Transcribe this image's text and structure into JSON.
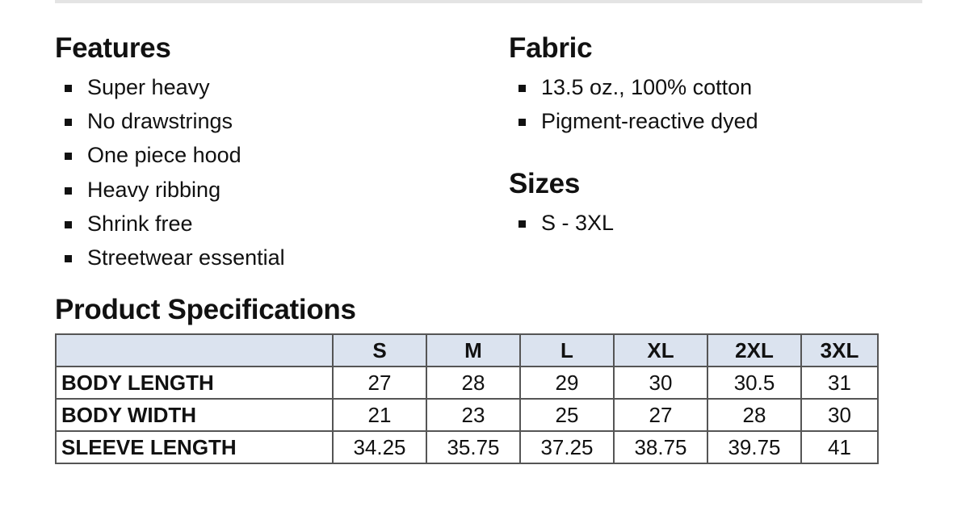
{
  "features": {
    "title": "Features",
    "items": [
      "Super heavy",
      "No drawstrings",
      "One piece hood",
      "Heavy ribbing",
      "Shrink free",
      "Streetwear essential"
    ]
  },
  "fabric": {
    "title": "Fabric",
    "items": [
      "13.5 oz., 100% cotton",
      "Pigment-reactive dyed"
    ]
  },
  "sizes": {
    "title": "Sizes",
    "items": [
      "S - 3XL"
    ]
  },
  "specs": {
    "title": "Product Specifications",
    "header_bg": "#dbe3ef",
    "columns": [
      "",
      "S",
      "M",
      "L",
      "XL",
      "2XL",
      "3XL"
    ],
    "rows": [
      {
        "label": "BODY LENGTH",
        "values": [
          "27",
          "28",
          "29",
          "30",
          "30.5",
          "31"
        ]
      },
      {
        "label": "BODY WIDTH",
        "values": [
          "21",
          "23",
          "25",
          "27",
          "28",
          "30"
        ]
      },
      {
        "label": "SLEEVE LENGTH",
        "values": [
          "34.25",
          "35.75",
          "37.25",
          "38.75",
          "39.75",
          "41"
        ]
      }
    ]
  }
}
